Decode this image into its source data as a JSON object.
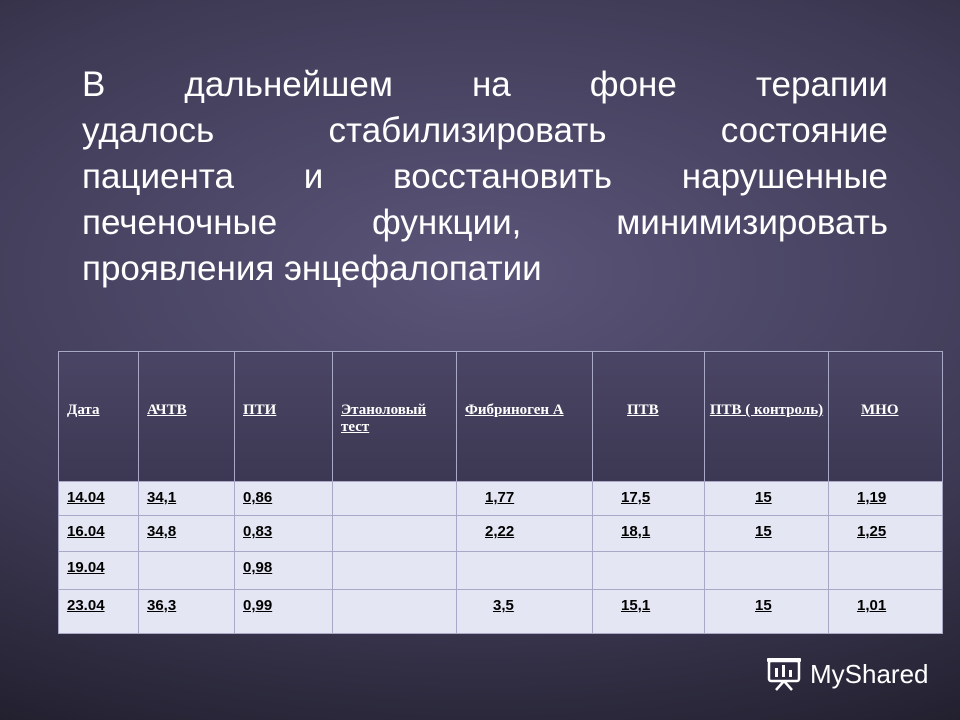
{
  "slide": {
    "heading_lines": [
      "В дальнейшем на фоне терапии",
      "удалось стабилизировать состояние",
      "пациента и восстановить нарушенные",
      "печеночные функции, минимизировать",
      "проявления энцефалопатии"
    ]
  },
  "table": {
    "headers": [
      "Дата",
      "АЧТВ",
      "ПТИ",
      "Этаноловый тест",
      "Фибриноген А",
      "ПТВ",
      "ПТВ ( контроль)",
      "МНО"
    ],
    "rows": [
      [
        "14.04",
        "34,1",
        "0,86",
        "",
        "1,77",
        "17,5",
        "15",
        "1,19"
      ],
      [
        "16.04",
        "34,8",
        "0,83",
        "",
        "2,22",
        "18,1",
        "15",
        "1,25"
      ],
      [
        "19.04",
        "",
        "0,98",
        "",
        "",
        "",
        "",
        ""
      ],
      [
        "23.04",
        "36,3",
        "0,99",
        "",
        "3,5",
        "15,1",
        "15",
        "1,01"
      ]
    ]
  },
  "watermark": {
    "text": "MyShared",
    "icon": "presentation-board-icon"
  }
}
